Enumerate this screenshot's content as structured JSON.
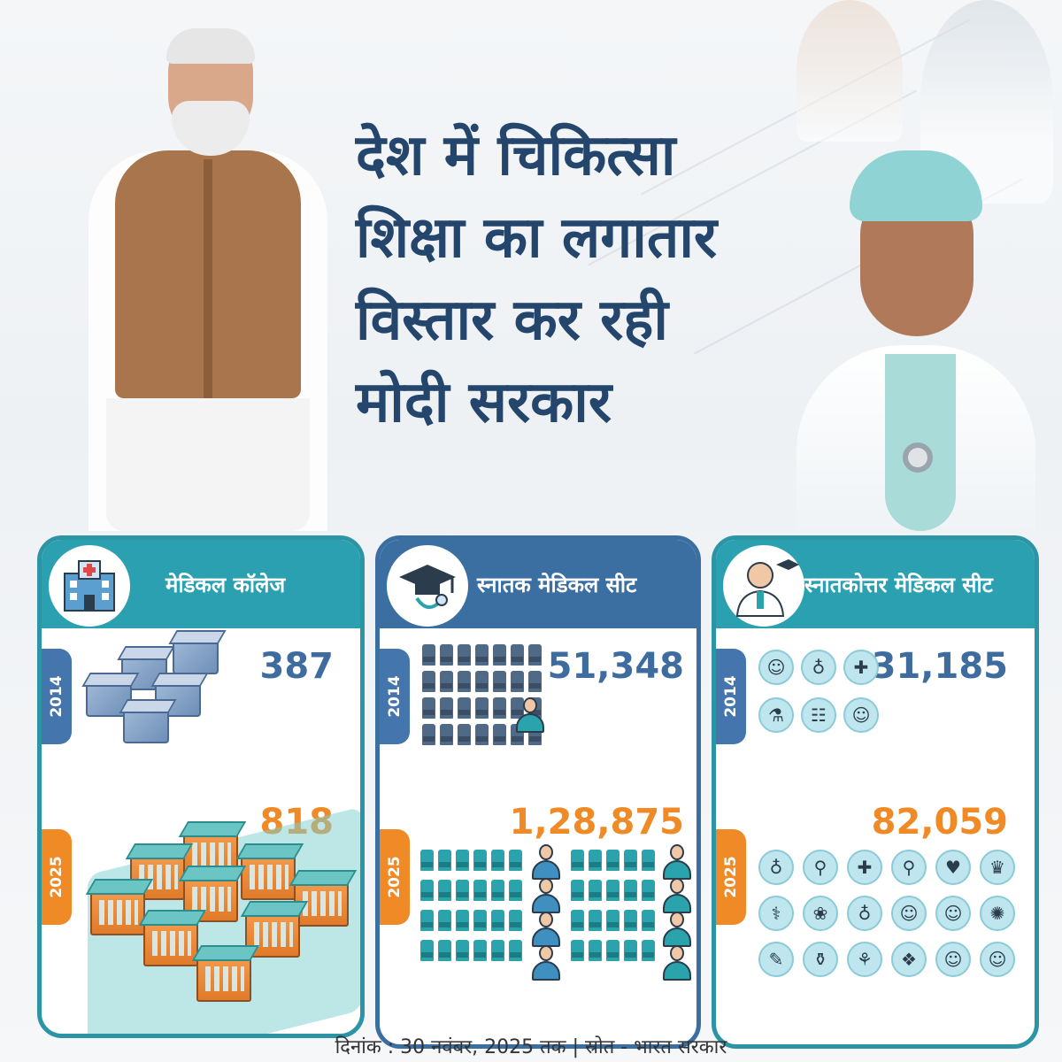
{
  "headline": {
    "lines": [
      "देश में चिकित्सा",
      "शिक्षा का लगातार",
      "विस्तार कर रही",
      "मोदी सरकार"
    ]
  },
  "cards": [
    {
      "title": "मेडिकल कॉलेज",
      "icon": "hospital-icon",
      "accent": "#2ba0b0",
      "year_2014": "2014",
      "value_2014": "387",
      "year_2025": "2025",
      "value_2025": "818",
      "illustration_2014": "small-buildings-icon",
      "illustration_2025": "large-buildings-icon"
    },
    {
      "title": "स्नातक मेडिकल सीट",
      "icon": "graduation-cap-stethoscope-icon",
      "accent": "#3c6fa1",
      "year_2014": "2014",
      "value_2014": "51,348",
      "year_2025": "2025",
      "value_2025": "1,28,875",
      "illustration_2014": "seat-rows-icon",
      "illustration_2025": "seat-rows-icon"
    },
    {
      "title": "स्नातकोत्तर मेडिकल सीट",
      "icon": "doctor-graduate-icon",
      "accent": "#2ba0b0",
      "year_2014": "2014",
      "value_2014": "31,185",
      "year_2025": "2025",
      "value_2025": "82,059",
      "illustration_2014": "medical-specialty-icons",
      "illustration_2025": "medical-specialty-icons"
    }
  ],
  "colors": {
    "headline": "#24466d",
    "teal": "#2ba0b0",
    "blue": "#3c6fa1",
    "orange": "#f08a26",
    "value_2014": "#3f6c9f"
  },
  "footer": {
    "text": "दिनांक : 30 नवंबर, 2025 तक  | स्रोत - भारत सरकार"
  }
}
